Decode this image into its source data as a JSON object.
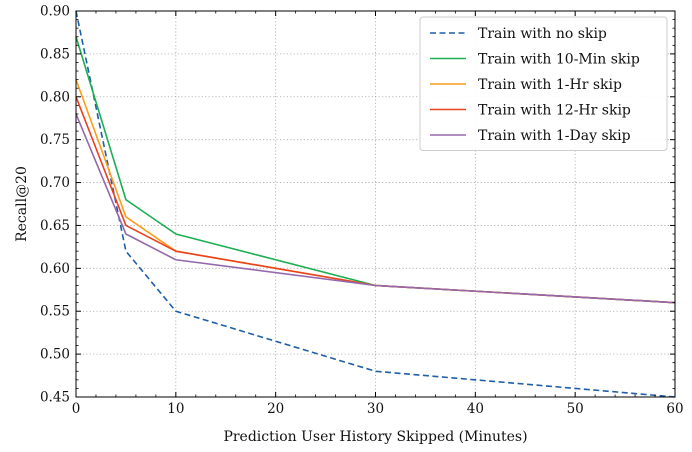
{
  "chart_data": {
    "type": "line",
    "title": "",
    "xlabel": "Prediction User History Skipped (Minutes)",
    "ylabel": "Recall@20",
    "xlim": [
      0,
      60
    ],
    "ylim": [
      0.45,
      0.9
    ],
    "xticks": [
      0,
      10,
      20,
      30,
      40,
      50,
      60
    ],
    "yticks": [
      "0.45",
      "0.50",
      "0.55",
      "0.60",
      "0.65",
      "0.70",
      "0.75",
      "0.80",
      "0.85",
      "0.90"
    ],
    "grid": true,
    "legend_position": "top-right",
    "x": [
      0,
      5,
      10,
      30,
      60
    ],
    "series": [
      {
        "name": "Train with no skip",
        "color": "#1f5fa8",
        "dash": "dashed",
        "values": [
          0.9,
          0.62,
          0.55,
          0.48,
          0.45
        ]
      },
      {
        "name": "Train with 10-Min skip",
        "color": "#1cae52",
        "dash": "solid",
        "values": [
          0.87,
          0.68,
          0.64,
          0.58,
          0.56
        ]
      },
      {
        "name": "Train with 1-Hr skip",
        "color": "#ff9c1a",
        "dash": "solid",
        "values": [
          0.82,
          0.66,
          0.62,
          0.58,
          0.56
        ]
      },
      {
        "name": "Train with 12-Hr skip",
        "color": "#e8421f",
        "dash": "solid",
        "values": [
          0.8,
          0.65,
          0.62,
          0.58,
          0.56
        ]
      },
      {
        "name": "Train with 1-Day skip",
        "color": "#9568ad",
        "dash": "solid",
        "values": [
          0.78,
          0.64,
          0.61,
          0.58,
          0.56
        ]
      }
    ]
  }
}
